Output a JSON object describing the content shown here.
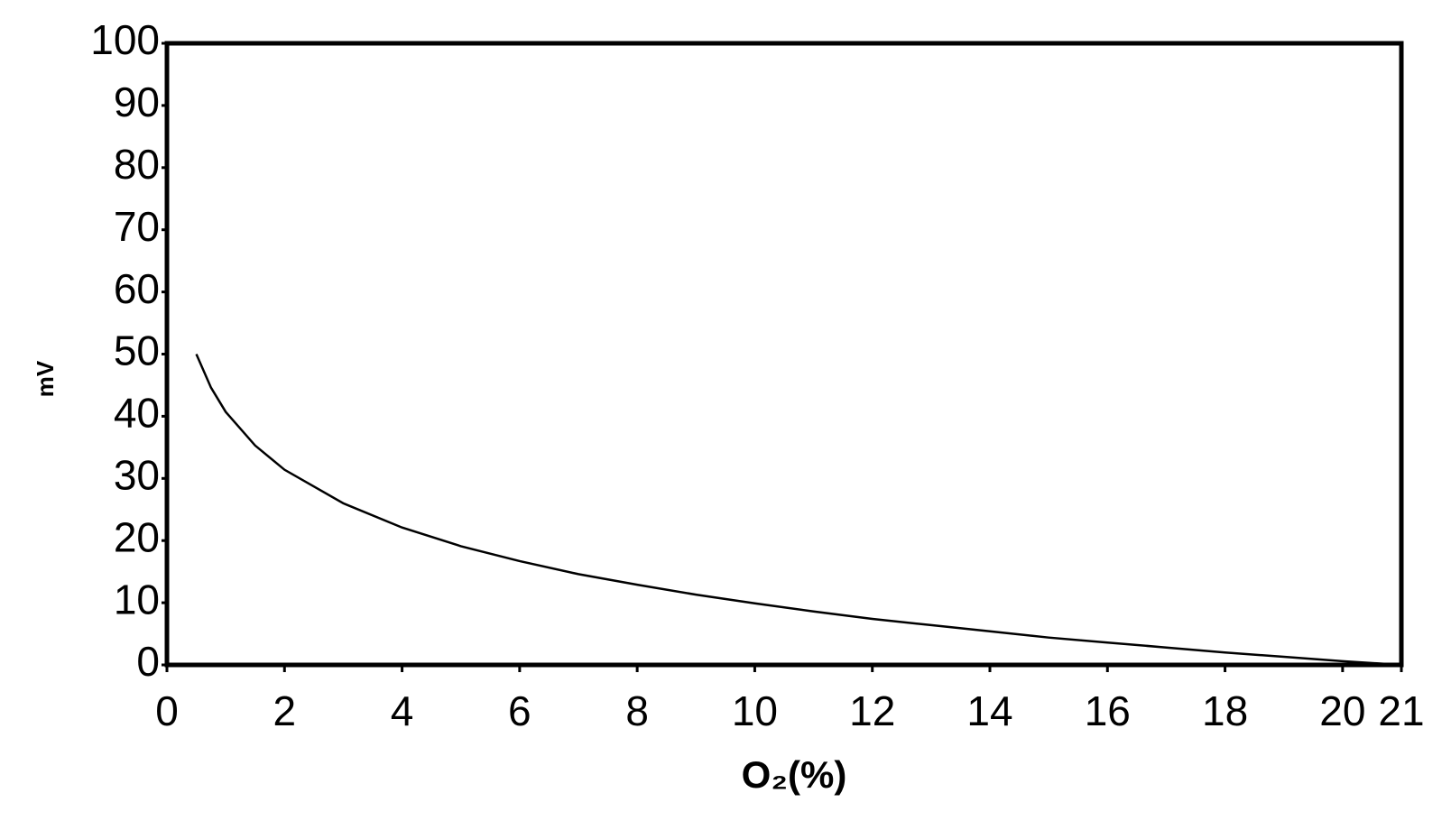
{
  "chart_data": {
    "type": "line",
    "x_label": "O₂(%)",
    "y_label": "mV",
    "x": [
      0.5,
      0.75,
      1,
      1.5,
      2,
      3,
      4,
      5,
      6,
      7,
      8,
      9,
      10,
      11,
      12,
      13,
      14,
      15,
      16,
      17,
      18,
      19,
      20,
      21
    ],
    "series": [
      {
        "color": "#000000",
        "values": [
          50.0,
          44.6,
          40.7,
          35.3,
          31.4,
          26.0,
          22.1,
          19.1,
          16.7,
          14.6,
          12.9,
          11.3,
          9.9,
          8.6,
          7.4,
          6.4,
          5.4,
          4.4,
          3.6,
          2.8,
          2.0,
          1.3,
          0.6,
          0
        ]
      }
    ],
    "xlim": [
      0,
      21
    ],
    "xticks": [
      0,
      2,
      4,
      6,
      8,
      10,
      12,
      14,
      16,
      18,
      20,
      21
    ],
    "ylim": [
      0,
      100
    ],
    "yticks": [
      0,
      10,
      20,
      30,
      40,
      50,
      60,
      70,
      80,
      90,
      100
    ],
    "grid": false
  }
}
